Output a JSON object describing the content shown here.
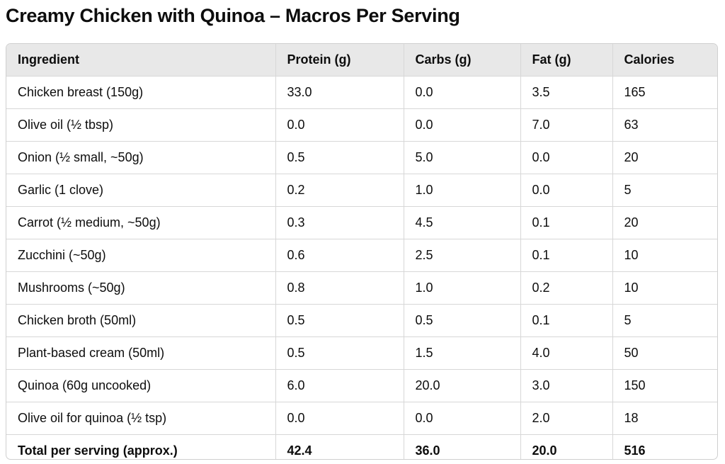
{
  "title": "Creamy Chicken with Quinoa – Macros Per Serving",
  "table": {
    "headers": [
      "Ingredient",
      "Protein (g)",
      "Carbs (g)",
      "Fat (g)",
      "Calories"
    ],
    "rows": [
      [
        "Chicken breast (150g)",
        "33.0",
        "0.0",
        "3.5",
        "165"
      ],
      [
        "Olive oil (½ tbsp)",
        "0.0",
        "0.0",
        "7.0",
        "63"
      ],
      [
        "Onion (½ small, ~50g)",
        "0.5",
        "5.0",
        "0.0",
        "20"
      ],
      [
        "Garlic (1 clove)",
        "0.2",
        "1.0",
        "0.0",
        "5"
      ],
      [
        "Carrot (½ medium, ~50g)",
        "0.3",
        "4.5",
        "0.1",
        "20"
      ],
      [
        "Zucchini (~50g)",
        "0.6",
        "2.5",
        "0.1",
        "10"
      ],
      [
        "Mushrooms (~50g)",
        "0.8",
        "1.0",
        "0.2",
        "10"
      ],
      [
        "Chicken broth (50ml)",
        "0.5",
        "0.5",
        "0.1",
        "5"
      ],
      [
        "Plant-based cream (50ml)",
        "0.5",
        "1.5",
        "4.0",
        "50"
      ],
      [
        "Quinoa (60g uncooked)",
        "6.0",
        "20.0",
        "3.0",
        "150"
      ],
      [
        "Olive oil for quinoa (½ tsp)",
        "0.0",
        "0.0",
        "2.0",
        "18"
      ]
    ],
    "total": [
      "Total per serving (approx.)",
      "42.4",
      "36.0",
      "20.0",
      "516"
    ]
  }
}
